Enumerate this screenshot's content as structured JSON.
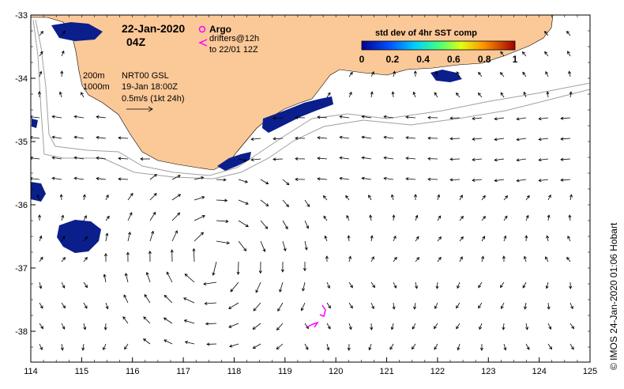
{
  "map": {
    "date": "22-Jan-2020",
    "hour": "04Z",
    "legend_argo": "Argo",
    "legend_drifters_line1": "drifters@12h",
    "legend_drifters_line2": "to 22/01 12Z",
    "depth_200": "200m",
    "depth_1000": "1000m",
    "product": "NRT00 GSL",
    "product_time": "19-Jan 18:00Z",
    "scale_label": "0.5m/s (1kt 24h)",
    "colorbar_title": "std dev of 4hr SST comp",
    "colorbar_ticks": [
      "0",
      "0.2",
      "0.4",
      "0.6",
      "0.8",
      "1"
    ],
    "credit": "© IMOS 24-Jan-2020 01:06 Hobart",
    "lon_ticks": [
      "114",
      "115",
      "116",
      "117",
      "118",
      "119",
      "120",
      "121",
      "122",
      "123",
      "124",
      "125"
    ],
    "lat_ticks": [
      "-33",
      "-34",
      "-35",
      "-36",
      "-37",
      "-38"
    ],
    "colors": {
      "land": "#fbc897",
      "sst_patch": "#0a1e8c",
      "drifter": "#ff00ff",
      "isobath": "#a0a0a0"
    }
  }
}
